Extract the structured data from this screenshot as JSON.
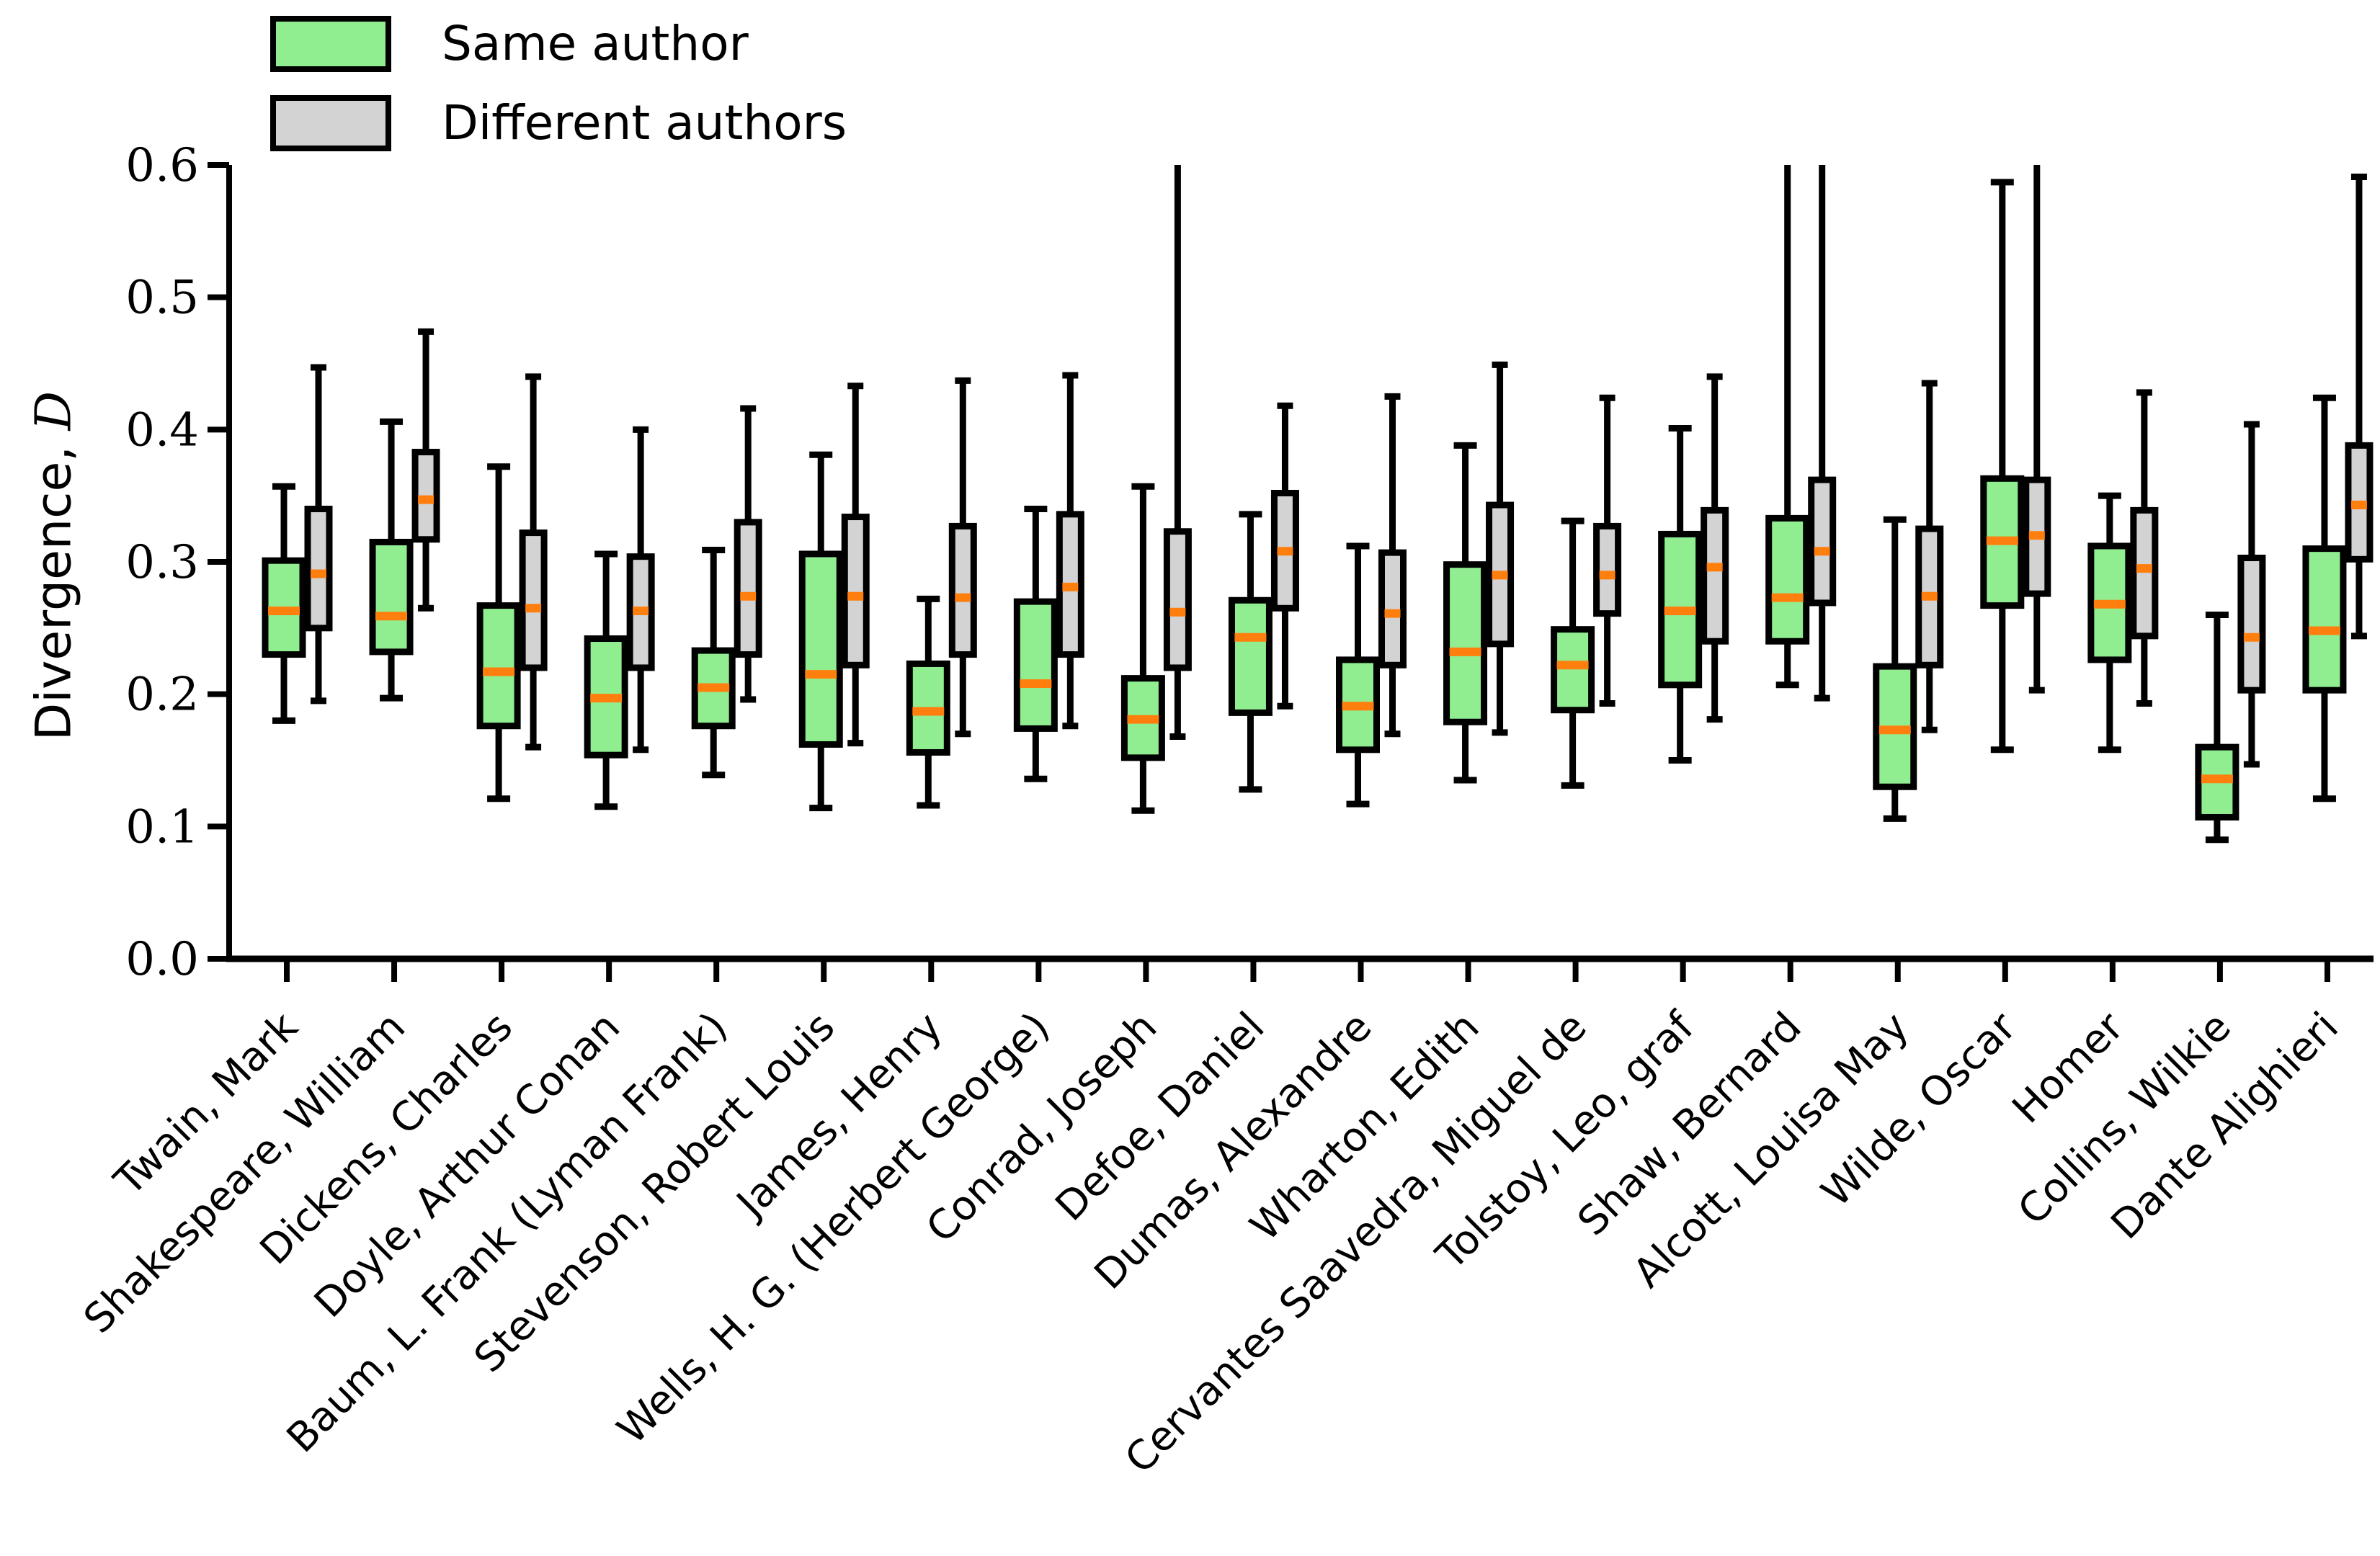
{
  "figure": {
    "background": "#ffffff",
    "axis_color": "#000000"
  },
  "legend": {
    "items": [
      {
        "label": "Same author",
        "color": "#90EE90"
      },
      {
        "label": "Different authors",
        "color": "#D3D3D3"
      }
    ]
  },
  "chart_data": {
    "type": "boxplot",
    "title": "",
    "xlabel": "",
    "ylabel": "Divergence, D",
    "ylabel_prefix": "Divergence, ",
    "ylabel_symbol": "D",
    "ylim": [
      0.0,
      0.6
    ],
    "yticks": [
      "0.0",
      "0.1",
      "0.2",
      "0.3",
      "0.4",
      "0.5",
      "0.6"
    ],
    "grid": false,
    "legend_position": "upper left",
    "median_color": "#ff7f0e",
    "box_edge_color": "#000000",
    "categories": [
      "Twain, Mark",
      "Shakespeare, William",
      "Dickens, Charles",
      "Doyle, Arthur Conan",
      "Baum, L. Frank (Lyman Frank)",
      "Stevenson, Robert Louis",
      "James, Henry",
      "Wells, H. G. (Herbert George)",
      "Conrad, Joseph",
      "Defoe, Daniel",
      "Dumas, Alexandre",
      "Wharton, Edith",
      "Cervantes Saavedra, Miguel de",
      "Tolstoy, Leo, graf",
      "Shaw, Bernard",
      "Alcott, Louisa May",
      "Wilde, Oscar",
      "Homer",
      "Collins, Wilkie",
      "Dante Alighieri"
    ],
    "series": [
      {
        "name": "Same author",
        "fill": "#90EE90",
        "stats": [
          {
            "lo": 0.18,
            "q1": 0.23,
            "med": 0.263,
            "q3": 0.301,
            "hi": 0.357
          },
          {
            "lo": 0.197,
            "q1": 0.232,
            "med": 0.259,
            "q3": 0.315,
            "hi": 0.406
          },
          {
            "lo": 0.121,
            "q1": 0.176,
            "med": 0.217,
            "q3": 0.267,
            "hi": 0.372
          },
          {
            "lo": 0.115,
            "q1": 0.154,
            "med": 0.197,
            "q3": 0.242,
            "hi": 0.306
          },
          {
            "lo": 0.139,
            "q1": 0.176,
            "med": 0.205,
            "q3": 0.233,
            "hi": 0.309
          },
          {
            "lo": 0.114,
            "q1": 0.162,
            "med": 0.215,
            "q3": 0.306,
            "hi": 0.381
          },
          {
            "lo": 0.116,
            "q1": 0.156,
            "med": 0.187,
            "q3": 0.223,
            "hi": 0.272
          },
          {
            "lo": 0.136,
            "q1": 0.174,
            "med": 0.208,
            "q3": 0.27,
            "hi": 0.34
          },
          {
            "lo": 0.112,
            "q1": 0.152,
            "med": 0.181,
            "q3": 0.212,
            "hi": 0.357
          },
          {
            "lo": 0.128,
            "q1": 0.186,
            "med": 0.243,
            "q3": 0.271,
            "hi": 0.336
          },
          {
            "lo": 0.117,
            "q1": 0.158,
            "med": 0.191,
            "q3": 0.226,
            "hi": 0.312
          },
          {
            "lo": 0.135,
            "q1": 0.179,
            "med": 0.232,
            "q3": 0.298,
            "hi": 0.388
          },
          {
            "lo": 0.131,
            "q1": 0.188,
            "med": 0.222,
            "q3": 0.249,
            "hi": 0.331
          },
          {
            "lo": 0.15,
            "q1": 0.207,
            "med": 0.263,
            "q3": 0.321,
            "hi": 0.401
          },
          {
            "lo": 0.207,
            "q1": 0.24,
            "med": 0.273,
            "q3": 0.333,
            "hi": 0.6,
            "hi_clipped": true
          },
          {
            "lo": 0.106,
            "q1": 0.13,
            "med": 0.173,
            "q3": 0.221,
            "hi": 0.332
          },
          {
            "lo": 0.158,
            "q1": 0.267,
            "med": 0.316,
            "q3": 0.363,
            "hi": 0.587
          },
          {
            "lo": 0.158,
            "q1": 0.226,
            "med": 0.268,
            "q3": 0.312,
            "hi": 0.35
          },
          {
            "lo": 0.09,
            "q1": 0.107,
            "med": 0.136,
            "q3": 0.16,
            "hi": 0.26
          },
          {
            "lo": 0.121,
            "q1": 0.203,
            "med": 0.248,
            "q3": 0.31,
            "hi": 0.424
          }
        ]
      },
      {
        "name": "Different authors",
        "fill": "#D3D3D3",
        "stats": [
          {
            "lo": 0.195,
            "q1": 0.25,
            "med": 0.291,
            "q3": 0.34,
            "hi": 0.447
          },
          {
            "lo": 0.265,
            "q1": 0.317,
            "med": 0.347,
            "q3": 0.383,
            "hi": 0.474
          },
          {
            "lo": 0.16,
            "q1": 0.22,
            "med": 0.265,
            "q3": 0.322,
            "hi": 0.44
          },
          {
            "lo": 0.158,
            "q1": 0.22,
            "med": 0.263,
            "q3": 0.304,
            "hi": 0.4
          },
          {
            "lo": 0.196,
            "q1": 0.23,
            "med": 0.274,
            "q3": 0.33,
            "hi": 0.416
          },
          {
            "lo": 0.163,
            "q1": 0.222,
            "med": 0.274,
            "q3": 0.334,
            "hi": 0.433
          },
          {
            "lo": 0.17,
            "q1": 0.23,
            "med": 0.273,
            "q3": 0.327,
            "hi": 0.437
          },
          {
            "lo": 0.176,
            "q1": 0.23,
            "med": 0.281,
            "q3": 0.336,
            "hi": 0.441
          },
          {
            "lo": 0.168,
            "q1": 0.22,
            "med": 0.262,
            "q3": 0.323,
            "hi": 0.6,
            "hi_clipped": true
          },
          {
            "lo": 0.191,
            "q1": 0.265,
            "med": 0.308,
            "q3": 0.352,
            "hi": 0.418
          },
          {
            "lo": 0.17,
            "q1": 0.222,
            "med": 0.261,
            "q3": 0.307,
            "hi": 0.425
          },
          {
            "lo": 0.171,
            "q1": 0.238,
            "med": 0.29,
            "q3": 0.343,
            "hi": 0.449
          },
          {
            "lo": 0.193,
            "q1": 0.261,
            "med": 0.29,
            "q3": 0.327,
            "hi": 0.424
          },
          {
            "lo": 0.181,
            "q1": 0.24,
            "med": 0.296,
            "q3": 0.339,
            "hi": 0.44
          },
          {
            "lo": 0.197,
            "q1": 0.269,
            "med": 0.308,
            "q3": 0.362,
            "hi": 0.6,
            "hi_clipped": true
          },
          {
            "lo": 0.173,
            "q1": 0.222,
            "med": 0.274,
            "q3": 0.325,
            "hi": 0.435
          },
          {
            "lo": 0.203,
            "q1": 0.276,
            "med": 0.32,
            "q3": 0.362,
            "hi": 0.6,
            "hi_clipped": true
          },
          {
            "lo": 0.193,
            "q1": 0.244,
            "med": 0.295,
            "q3": 0.339,
            "hi": 0.428
          },
          {
            "lo": 0.147,
            "q1": 0.203,
            "med": 0.243,
            "q3": 0.303,
            "hi": 0.404
          },
          {
            "lo": 0.244,
            "q1": 0.302,
            "med": 0.343,
            "q3": 0.388,
            "hi": 0.591
          }
        ]
      }
    ]
  }
}
